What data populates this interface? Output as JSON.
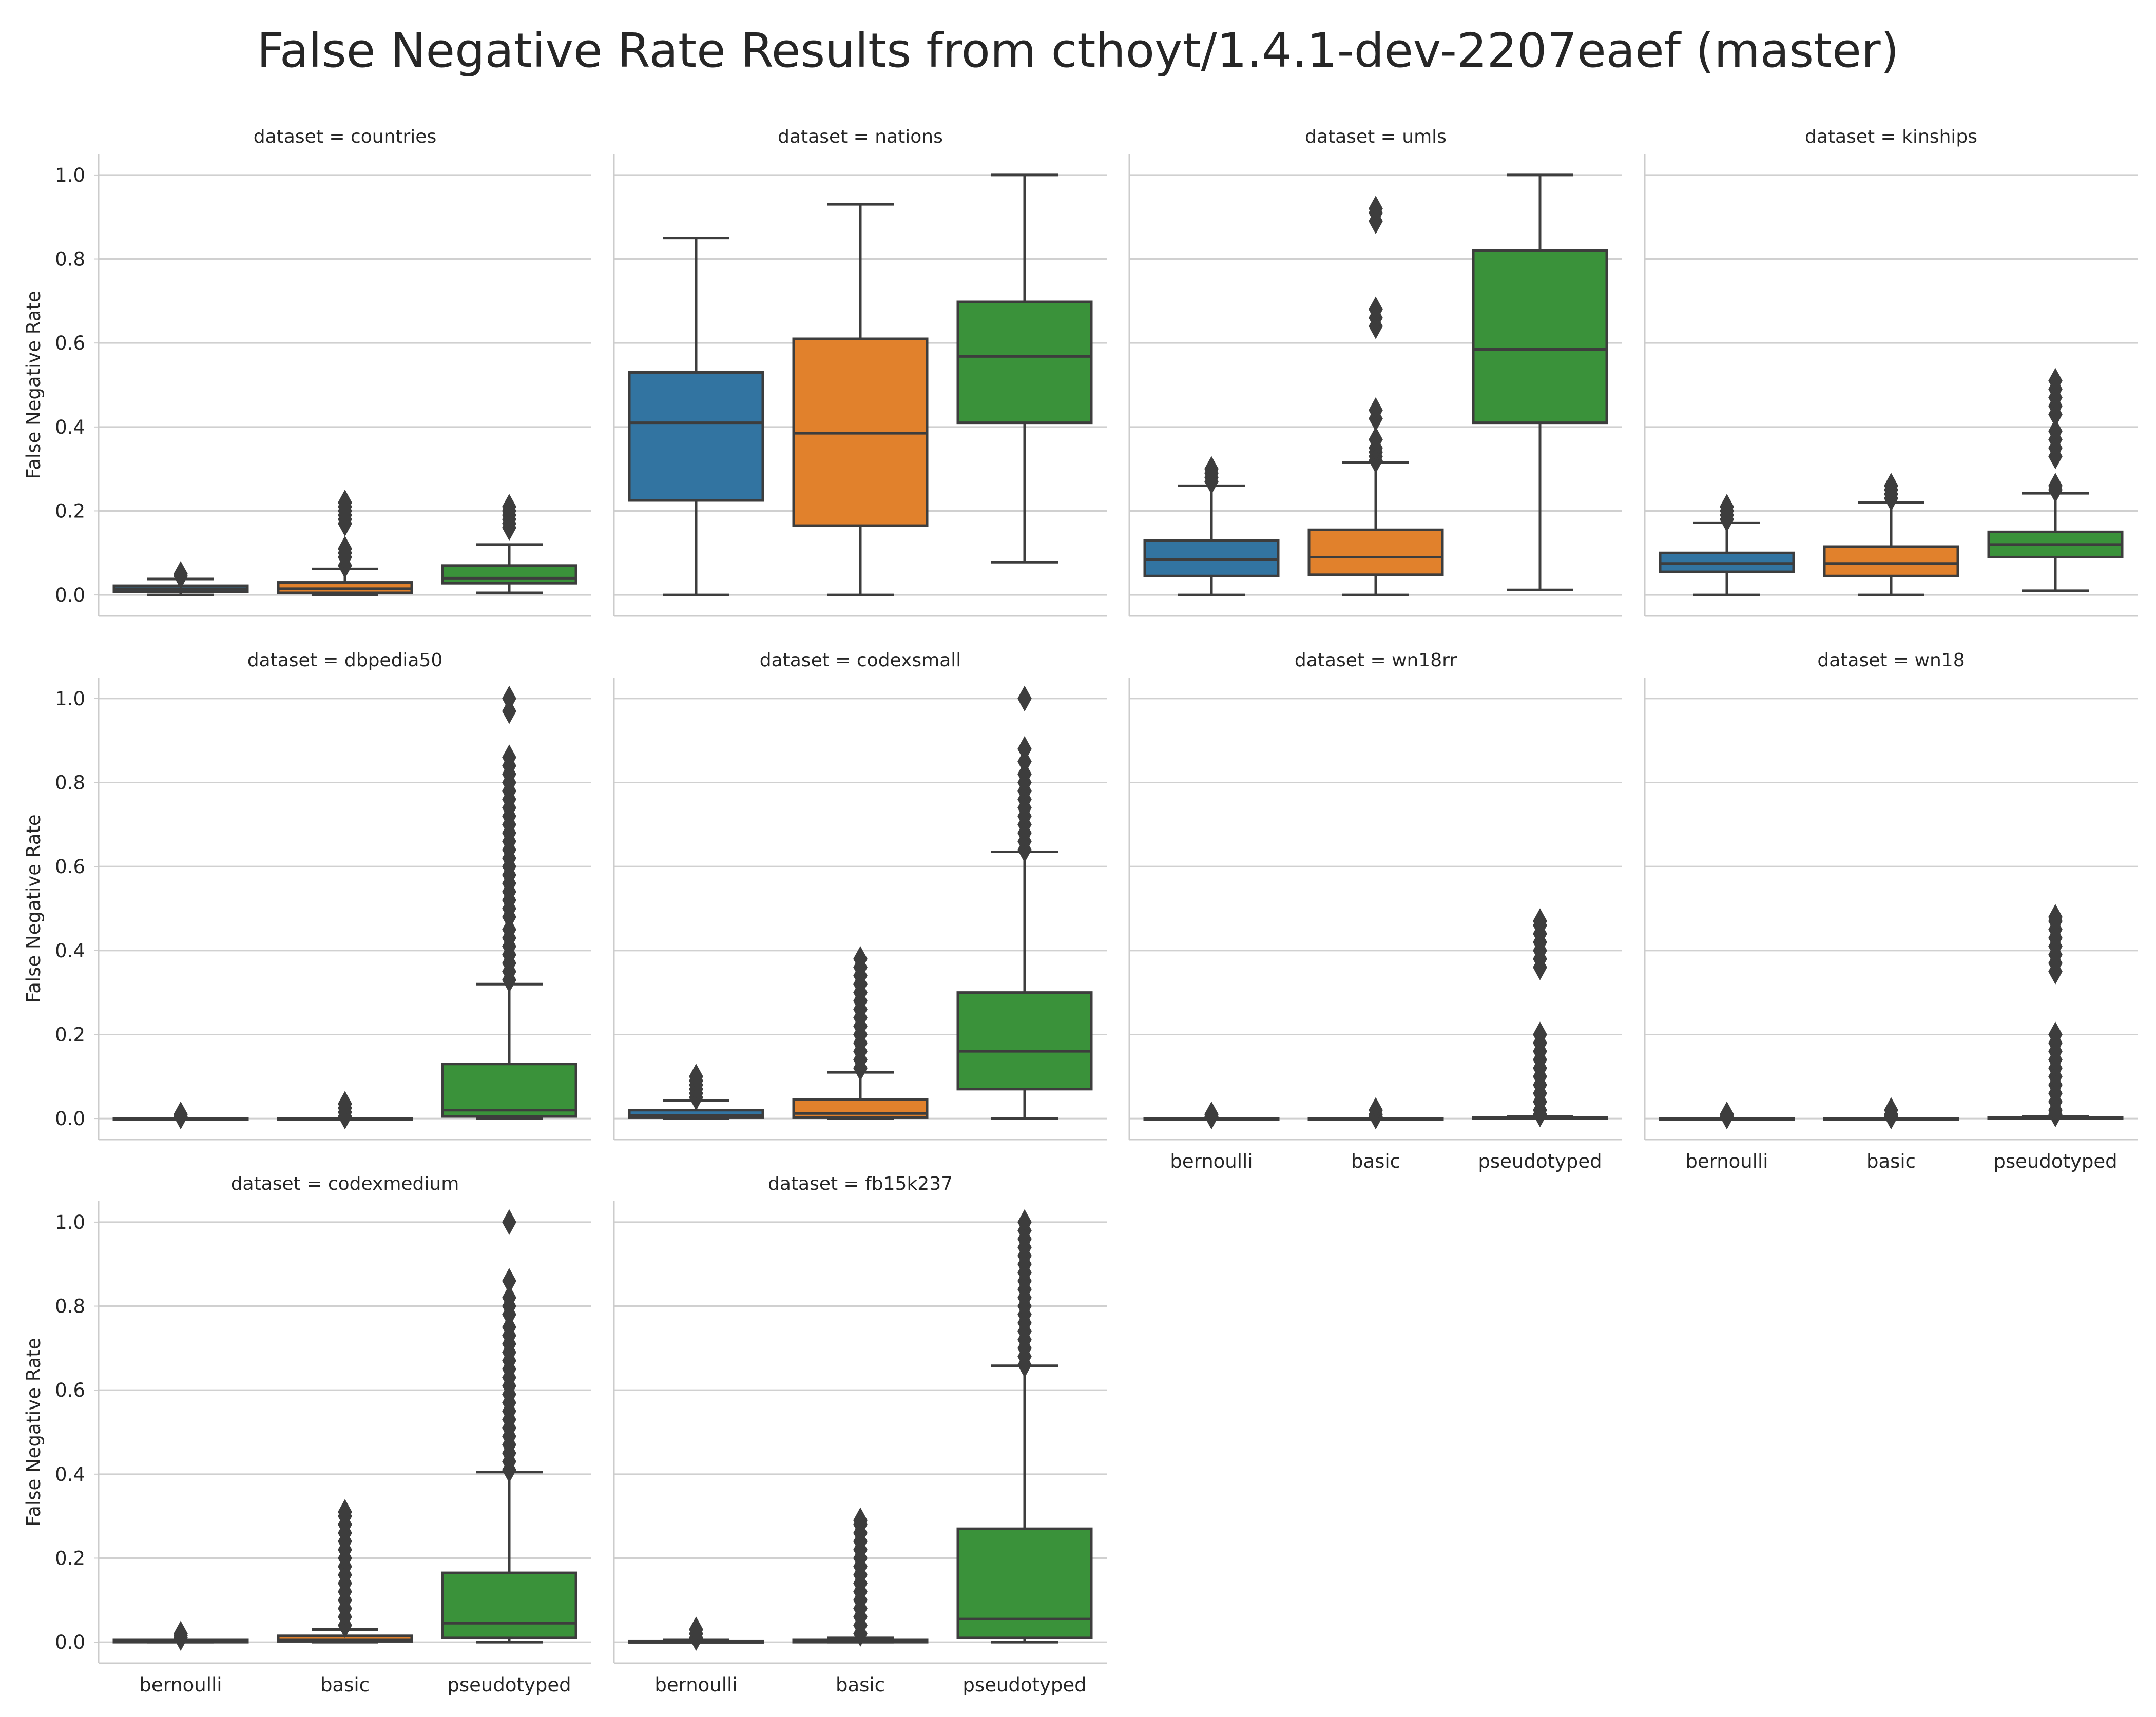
{
  "chart_data": {
    "type": "box",
    "title": "False Negative Rate Results from cthoyt/1.4.1-dev-2207eaef (master)",
    "ylabel": "False Negative Rate",
    "xlabel": "",
    "categories": [
      "bernoulli",
      "basic",
      "pseudotyped"
    ],
    "category_colors": {
      "bernoulli": "#3274a1",
      "basic": "#e1812c",
      "pseudotyped": "#3a923a"
    },
    "ylim": [
      -0.05,
      1.05
    ],
    "yticks": [
      "0.0",
      "0.2",
      "0.4",
      "0.6",
      "0.8",
      "1.0"
    ],
    "grid": true,
    "panels": [
      {
        "title": "dataset = countries",
        "boxes": [
          {
            "category": "bernoulli",
            "whislo": 0.0,
            "q1": 0.008,
            "med": 0.015,
            "q3": 0.022,
            "whishi": 0.038,
            "fliers": [
              0.045,
              0.05
            ]
          },
          {
            "category": "basic",
            "whislo": 0.0,
            "q1": 0.005,
            "med": 0.015,
            "q3": 0.03,
            "whishi": 0.062,
            "fliers": [
              0.07,
              0.09,
              0.1,
              0.11,
              0.17,
              0.18,
              0.19,
              0.2,
              0.21,
              0.22
            ]
          },
          {
            "category": "pseudotyped",
            "whislo": 0.005,
            "q1": 0.028,
            "med": 0.04,
            "q3": 0.07,
            "whishi": 0.12,
            "fliers": [
              0.16,
              0.17,
              0.18,
              0.19,
              0.2,
              0.21
            ]
          }
        ]
      },
      {
        "title": "dataset = nations",
        "boxes": [
          {
            "category": "bernoulli",
            "whislo": 0.0,
            "q1": 0.225,
            "med": 0.41,
            "q3": 0.53,
            "whishi": 0.85,
            "fliers": []
          },
          {
            "category": "basic",
            "whislo": 0.0,
            "q1": 0.165,
            "med": 0.385,
            "q3": 0.61,
            "whishi": 0.93,
            "fliers": []
          },
          {
            "category": "pseudotyped",
            "whislo": 0.078,
            "q1": 0.41,
            "med": 0.568,
            "q3": 0.698,
            "whishi": 1.0,
            "fliers": []
          }
        ]
      },
      {
        "title": "dataset = umls",
        "boxes": [
          {
            "category": "bernoulli",
            "whislo": 0.0,
            "q1": 0.045,
            "med": 0.085,
            "q3": 0.13,
            "whishi": 0.26,
            "fliers": [
              0.27,
              0.28,
              0.29,
              0.3
            ]
          },
          {
            "category": "basic",
            "whislo": 0.0,
            "q1": 0.048,
            "med": 0.09,
            "q3": 0.155,
            "whishi": 0.315,
            "fliers": [
              0.32,
              0.33,
              0.34,
              0.35,
              0.37,
              0.42,
              0.44,
              0.64,
              0.66,
              0.68,
              0.89,
              0.91,
              0.92
            ]
          },
          {
            "category": "pseudotyped",
            "whislo": 0.012,
            "q1": 0.41,
            "med": 0.585,
            "q3": 0.82,
            "whishi": 1.0,
            "fliers": []
          }
        ]
      },
      {
        "title": "dataset = kinships",
        "boxes": [
          {
            "category": "bernoulli",
            "whislo": 0.0,
            "q1": 0.055,
            "med": 0.075,
            "q3": 0.1,
            "whishi": 0.172,
            "fliers": [
              0.18,
              0.19,
              0.2,
              0.21
            ]
          },
          {
            "category": "basic",
            "whislo": 0.0,
            "q1": 0.045,
            "med": 0.075,
            "q3": 0.115,
            "whishi": 0.22,
            "fliers": [
              0.23,
              0.24,
              0.25,
              0.26
            ]
          },
          {
            "category": "pseudotyped",
            "whislo": 0.01,
            "q1": 0.09,
            "med": 0.12,
            "q3": 0.15,
            "whishi": 0.242,
            "fliers": [
              0.25,
              0.26,
              0.33,
              0.35,
              0.37,
              0.39,
              0.43,
              0.45,
              0.47,
              0.49,
              0.51
            ]
          }
        ]
      },
      {
        "title": "dataset = dbpedia50",
        "boxes": [
          {
            "category": "bernoulli",
            "whislo": 0.0,
            "q1": 0.0,
            "med": 0.0,
            "q3": 0.0,
            "whishi": 0.0,
            "fliers": [
              0.005,
              0.01
            ]
          },
          {
            "category": "basic",
            "whislo": 0.0,
            "q1": 0.0,
            "med": 0.0,
            "q3": 0.0,
            "whishi": 0.0,
            "fliers": [
              0.005,
              0.015,
              0.025,
              0.035
            ]
          },
          {
            "category": "pseudotyped",
            "whislo": 0.0,
            "q1": 0.005,
            "med": 0.02,
            "q3": 0.13,
            "whishi": 0.32,
            "fliers": [
              0.33,
              0.35,
              0.37,
              0.39,
              0.41,
              0.43,
              0.45,
              0.48,
              0.5,
              0.52,
              0.54,
              0.56,
              0.58,
              0.6,
              0.62,
              0.64,
              0.66,
              0.68,
              0.7,
              0.72,
              0.74,
              0.76,
              0.78,
              0.8,
              0.82,
              0.84,
              0.86,
              0.97,
              1.0
            ]
          }
        ]
      },
      {
        "title": "dataset = codexsmall",
        "boxes": [
          {
            "category": "bernoulli",
            "whislo": 0.0,
            "q1": 0.002,
            "med": 0.008,
            "q3": 0.02,
            "whishi": 0.043,
            "fliers": [
              0.05,
              0.06,
              0.07,
              0.08,
              0.09,
              0.1
            ]
          },
          {
            "category": "basic",
            "whislo": 0.0,
            "q1": 0.002,
            "med": 0.012,
            "q3": 0.045,
            "whishi": 0.11,
            "fliers": [
              0.12,
              0.14,
              0.16,
              0.18,
              0.2,
              0.22,
              0.24,
              0.26,
              0.28,
              0.3,
              0.32,
              0.34,
              0.36,
              0.38
            ]
          },
          {
            "category": "pseudotyped",
            "whislo": 0.0,
            "q1": 0.07,
            "med": 0.16,
            "q3": 0.3,
            "whishi": 0.635,
            "fliers": [
              0.64,
              0.66,
              0.68,
              0.7,
              0.72,
              0.74,
              0.76,
              0.78,
              0.8,
              0.82,
              0.85,
              0.88,
              1.0
            ]
          }
        ]
      },
      {
        "title": "dataset = wn18rr",
        "boxes": [
          {
            "category": "bernoulli",
            "whislo": 0.0,
            "q1": 0.0,
            "med": 0.0,
            "q3": 0.0,
            "whishi": 0.0,
            "fliers": [
              0.005,
              0.01
            ]
          },
          {
            "category": "basic",
            "whislo": 0.0,
            "q1": 0.0,
            "med": 0.0,
            "q3": 0.0,
            "whishi": 0.0,
            "fliers": [
              0.005,
              0.01,
              0.02
            ]
          },
          {
            "category": "pseudotyped",
            "whislo": 0.0,
            "q1": 0.0,
            "med": 0.0,
            "q3": 0.002,
            "whishi": 0.005,
            "fliers": [
              0.01,
              0.02,
              0.04,
              0.06,
              0.08,
              0.1,
              0.12,
              0.14,
              0.16,
              0.18,
              0.2,
              0.36,
              0.38,
              0.4,
              0.42,
              0.44,
              0.46,
              0.47
            ]
          }
        ]
      },
      {
        "title": "dataset = wn18",
        "boxes": [
          {
            "category": "bernoulli",
            "whislo": 0.0,
            "q1": 0.0,
            "med": 0.0,
            "q3": 0.0,
            "whishi": 0.0,
            "fliers": [
              0.005,
              0.01
            ]
          },
          {
            "category": "basic",
            "whislo": 0.0,
            "q1": 0.0,
            "med": 0.0,
            "q3": 0.0,
            "whishi": 0.0,
            "fliers": [
              0.005,
              0.01,
              0.02
            ]
          },
          {
            "category": "pseudotyped",
            "whislo": 0.0,
            "q1": 0.0,
            "med": 0.0,
            "q3": 0.002,
            "whishi": 0.005,
            "fliers": [
              0.01,
              0.02,
              0.04,
              0.06,
              0.08,
              0.1,
              0.12,
              0.14,
              0.16,
              0.18,
              0.2,
              0.35,
              0.37,
              0.39,
              0.41,
              0.43,
              0.45,
              0.47,
              0.48
            ]
          }
        ]
      },
      {
        "title": "dataset = codexmedium",
        "boxes": [
          {
            "category": "bernoulli",
            "whislo": 0.0,
            "q1": 0.0,
            "med": 0.002,
            "q3": 0.005,
            "whishi": 0.005,
            "fliers": [
              0.01,
              0.015,
              0.02
            ]
          },
          {
            "category": "basic",
            "whislo": 0.0,
            "q1": 0.002,
            "med": 0.005,
            "q3": 0.015,
            "whishi": 0.03,
            "fliers": [
              0.04,
              0.06,
              0.08,
              0.1,
              0.12,
              0.14,
              0.16,
              0.18,
              0.2,
              0.22,
              0.24,
              0.26,
              0.28,
              0.3,
              0.31
            ]
          },
          {
            "category": "pseudotyped",
            "whislo": 0.0,
            "q1": 0.01,
            "med": 0.045,
            "q3": 0.165,
            "whishi": 0.405,
            "fliers": [
              0.41,
              0.43,
              0.45,
              0.47,
              0.49,
              0.51,
              0.53,
              0.55,
              0.57,
              0.59,
              0.61,
              0.63,
              0.65,
              0.67,
              0.69,
              0.71,
              0.73,
              0.75,
              0.78,
              0.8,
              0.82,
              0.86,
              1.0
            ]
          }
        ]
      },
      {
        "title": "dataset = fb15k237",
        "boxes": [
          {
            "category": "bernoulli",
            "whislo": 0.0,
            "q1": 0.0,
            "med": 0.0,
            "q3": 0.002,
            "whishi": 0.005,
            "fliers": [
              0.01,
              0.02,
              0.03
            ]
          },
          {
            "category": "basic",
            "whislo": 0.0,
            "q1": 0.0,
            "med": 0.002,
            "q3": 0.005,
            "whishi": 0.01,
            "fliers": [
              0.02,
              0.04,
              0.06,
              0.08,
              0.1,
              0.12,
              0.14,
              0.16,
              0.18,
              0.2,
              0.22,
              0.24,
              0.26,
              0.28,
              0.29
            ]
          },
          {
            "category": "pseudotyped",
            "whislo": 0.0,
            "q1": 0.01,
            "med": 0.055,
            "q3": 0.27,
            "whishi": 0.658,
            "fliers": [
              0.66,
              0.68,
              0.7,
              0.72,
              0.74,
              0.76,
              0.78,
              0.8,
              0.82,
              0.84,
              0.86,
              0.88,
              0.9,
              0.92,
              0.94,
              0.96,
              0.98,
              1.0
            ]
          }
        ]
      }
    ]
  }
}
